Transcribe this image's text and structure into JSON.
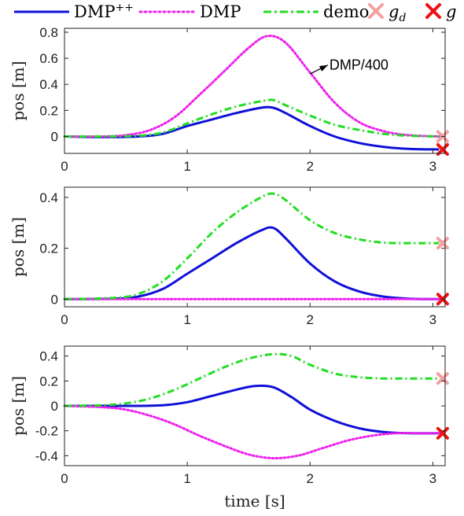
{
  "legend": {
    "items": [
      {
        "label": "DMP",
        "superscript": "++",
        "color": "#1010d8",
        "style": "solid",
        "marker": "line"
      },
      {
        "label": "DMP",
        "superscript": "",
        "color": "#ee22ee",
        "style": "dotted",
        "marker": "line"
      },
      {
        "label": "demo",
        "superscript": "",
        "color": "#22dd22",
        "style": "dashdot",
        "marker": "line"
      },
      {
        "label": "g",
        "subscript": "d",
        "color": "#f4a0a0",
        "style": "none",
        "marker": "x"
      },
      {
        "label": "g",
        "subscript": "",
        "color": "#ee1111",
        "style": "none",
        "marker": "x"
      }
    ]
  },
  "chart_data": [
    {
      "type": "line",
      "ylabel": "pos [m]",
      "xlim": [
        0,
        3.1
      ],
      "ylim": [
        -0.13,
        0.83
      ],
      "xticks": [
        0,
        1,
        2,
        3
      ],
      "xtick_labels": [
        "0",
        "1",
        "2",
        "3"
      ],
      "yticks": [
        0,
        0.2,
        0.4,
        0.6,
        0.8
      ],
      "ytick_labels": [
        "0",
        "0.2",
        "0.4",
        "0.6",
        "0.8"
      ],
      "annotation": {
        "text": "DMP/400",
        "points_to": [
          2.0,
          0.48
        ],
        "text_at": [
          2.35,
          0.56
        ]
      },
      "series": [
        {
          "name": "DMP++",
          "x": [
            0,
            0.3,
            0.6,
            0.8,
            1.0,
            1.2,
            1.4,
            1.6,
            1.7,
            1.8,
            2.0,
            2.2,
            2.4,
            2.6,
            2.8,
            3.05
          ],
          "y": [
            0,
            -0.005,
            0,
            0.02,
            0.08,
            0.13,
            0.18,
            0.22,
            0.22,
            0.18,
            0.08,
            0.0,
            -0.05,
            -0.08,
            -0.095,
            -0.1
          ]
        },
        {
          "name": "DMP",
          "x": [
            0,
            0.3,
            0.5,
            0.7,
            0.9,
            1.1,
            1.3,
            1.5,
            1.65,
            1.8,
            2.0,
            2.2,
            2.4,
            2.6,
            2.8,
            3.05
          ],
          "y": [
            0,
            0,
            0.01,
            0.05,
            0.15,
            0.32,
            0.5,
            0.68,
            0.77,
            0.72,
            0.49,
            0.26,
            0.11,
            0.04,
            0.01,
            0.0
          ]
        },
        {
          "name": "demo",
          "x": [
            0,
            0.3,
            0.6,
            0.8,
            1.0,
            1.2,
            1.4,
            1.6,
            1.7,
            1.8,
            2.0,
            2.2,
            2.4,
            2.6,
            2.8,
            3.05
          ],
          "y": [
            0,
            0,
            0.005,
            0.03,
            0.1,
            0.17,
            0.23,
            0.27,
            0.28,
            0.24,
            0.16,
            0.09,
            0.05,
            0.02,
            0.005,
            0.0
          ]
        }
      ],
      "markers": [
        {
          "name": "g_d",
          "x": 3.08,
          "y": 0.0
        },
        {
          "name": "g",
          "x": 3.08,
          "y": -0.1
        }
      ]
    },
    {
      "type": "line",
      "ylabel": "pos [m]",
      "xlim": [
        0,
        3.1
      ],
      "ylim": [
        -0.03,
        0.44
      ],
      "xticks": [
        0,
        1,
        2,
        3
      ],
      "xtick_labels": [
        "0",
        "1",
        "2",
        "3"
      ],
      "yticks": [
        0,
        0.2,
        0.4
      ],
      "ytick_labels": [
        "0",
        "0.2",
        "0.4"
      ],
      "series": [
        {
          "name": "DMP++",
          "x": [
            0,
            0.4,
            0.6,
            0.8,
            1.0,
            1.2,
            1.4,
            1.6,
            1.7,
            1.8,
            2.0,
            2.2,
            2.4,
            2.6,
            2.8,
            3.05
          ],
          "y": [
            0,
            0.002,
            0.01,
            0.04,
            0.1,
            0.16,
            0.22,
            0.27,
            0.28,
            0.24,
            0.14,
            0.07,
            0.03,
            0.01,
            0.002,
            0.0
          ]
        },
        {
          "name": "DMP",
          "x": [
            0,
            1.0,
            2.0,
            3.05
          ],
          "y": [
            0,
            0,
            0,
            0
          ]
        },
        {
          "name": "demo",
          "x": [
            0,
            0.4,
            0.6,
            0.8,
            1.0,
            1.2,
            1.4,
            1.6,
            1.7,
            1.8,
            2.0,
            2.2,
            2.4,
            2.6,
            2.8,
            3.05
          ],
          "y": [
            0,
            0.005,
            0.02,
            0.07,
            0.16,
            0.26,
            0.34,
            0.4,
            0.415,
            0.39,
            0.31,
            0.26,
            0.235,
            0.222,
            0.22,
            0.22
          ]
        }
      ],
      "markers": [
        {
          "name": "g_d",
          "x": 3.08,
          "y": 0.22
        },
        {
          "name": "g",
          "x": 3.08,
          "y": 0.0
        }
      ]
    },
    {
      "type": "line",
      "xlabel": "time [s]",
      "ylabel": "pos [m]",
      "xlim": [
        0,
        3.1
      ],
      "ylim": [
        -0.48,
        0.48
      ],
      "xticks": [
        0,
        1,
        2,
        3
      ],
      "xtick_labels": [
        "0",
        "1",
        "2",
        "3"
      ],
      "yticks": [
        -0.4,
        -0.2,
        0,
        0.2,
        0.4
      ],
      "ytick_labels": [
        "-0.4",
        "-0.2",
        "0",
        "0.2",
        "0.4"
      ],
      "series": [
        {
          "name": "DMP++",
          "x": [
            0,
            0.5,
            0.8,
            1.0,
            1.2,
            1.4,
            1.55,
            1.7,
            1.85,
            2.0,
            2.2,
            2.4,
            2.6,
            2.8,
            3.05
          ],
          "y": [
            0,
            0,
            0.005,
            0.03,
            0.08,
            0.13,
            0.16,
            0.15,
            0.07,
            -0.03,
            -0.12,
            -0.18,
            -0.21,
            -0.22,
            -0.22
          ]
        },
        {
          "name": "DMP",
          "x": [
            0,
            0.3,
            0.5,
            0.7,
            0.9,
            1.1,
            1.3,
            1.5,
            1.7,
            1.9,
            2.1,
            2.3,
            2.5,
            2.7,
            2.9,
            3.05
          ],
          "y": [
            0,
            -0.01,
            -0.03,
            -0.08,
            -0.15,
            -0.24,
            -0.32,
            -0.39,
            -0.42,
            -0.4,
            -0.34,
            -0.28,
            -0.24,
            -0.22,
            -0.22,
            -0.22
          ]
        },
        {
          "name": "demo",
          "x": [
            0,
            0.3,
            0.5,
            0.7,
            0.9,
            1.1,
            1.3,
            1.5,
            1.7,
            1.85,
            2.0,
            2.2,
            2.4,
            2.6,
            2.8,
            3.05
          ],
          "y": [
            0,
            0.005,
            0.02,
            0.06,
            0.13,
            0.22,
            0.31,
            0.38,
            0.415,
            0.4,
            0.33,
            0.26,
            0.23,
            0.22,
            0.22,
            0.22
          ]
        }
      ],
      "markers": [
        {
          "name": "g_d",
          "x": 3.08,
          "y": 0.22
        },
        {
          "name": "g",
          "x": 3.08,
          "y": -0.22
        }
      ]
    }
  ]
}
